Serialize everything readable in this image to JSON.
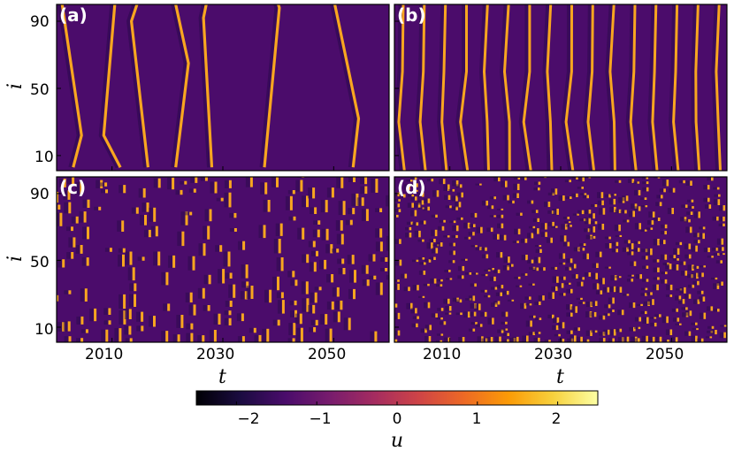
{
  "chart_data": [
    {
      "type": "heatmap",
      "panel_label": "(a)",
      "xlabel": "",
      "ylabel": "i",
      "xlim": [
        2000,
        2060
      ],
      "ylim": [
        1,
        100
      ],
      "xticks": [],
      "yticks": [
        "10",
        "50",
        "90"
      ],
      "background_u": -0.85,
      "wavefronts_t_at_i": [
        {
          "i": [
            3,
            22,
            100
          ],
          "t": [
            2003.0,
            2004.5,
            2001.0
          ]
        },
        {
          "i": [
            3,
            22,
            100
          ],
          "t": [
            2011.5,
            2008.5,
            2010.5
          ]
        },
        {
          "i": [
            3,
            90,
            100
          ],
          "t": [
            2016.5,
            2013.5,
            2014.5
          ]
        },
        {
          "i": [
            3,
            65,
            100
          ],
          "t": [
            2021.5,
            2023.8,
            2021.5
          ]
        },
        {
          "i": [
            3,
            92,
            100
          ],
          "t": [
            2028.0,
            2026.5,
            2027.0
          ]
        },
        {
          "i": [
            3,
            98,
            100
          ],
          "t": [
            2037.5,
            2040.2,
            2040.0
          ]
        },
        {
          "i": [
            3,
            32,
            100
          ],
          "t": [
            2053.5,
            2054.5,
            2050.2
          ]
        }
      ]
    },
    {
      "type": "heatmap",
      "panel_label": "(b)",
      "xlabel": "",
      "ylabel": "",
      "xlim": [
        2000,
        2060
      ],
      "ylim": [
        1,
        100
      ],
      "xticks": [],
      "yticks": [],
      "background_u": -0.85,
      "wavefront_spacing_t": 3.8,
      "wavefront_count": 17
    },
    {
      "type": "heatmap",
      "panel_label": "(c)",
      "xlabel": "t",
      "ylabel": "i",
      "xlim": [
        2000,
        2060
      ],
      "ylim": [
        1,
        100
      ],
      "xticks": [
        "2010",
        "2030",
        "2050"
      ],
      "yticks": [
        "10",
        "50",
        "90"
      ],
      "background_u": -0.85,
      "pattern": "fragmented wavefronts"
    },
    {
      "type": "heatmap",
      "panel_label": "(d)",
      "xlabel": "t",
      "ylabel": "",
      "xlim": [
        2000,
        2060
      ],
      "ylim": [
        1,
        100
      ],
      "xticks": [
        "2010",
        "2030",
        "2050"
      ],
      "yticks": [],
      "background_u": -0.85,
      "pattern": "spatiotemporal chaos"
    }
  ],
  "colorbar": {
    "label": "u",
    "range": [
      -2.5,
      2.5
    ],
    "ticks": [
      "−2",
      "−1",
      "0",
      "1",
      "2"
    ],
    "tick_values": [
      -2,
      -1,
      0,
      1,
      2
    ],
    "colormap": "inferno",
    "colors": [
      "#000004",
      "#1b0c41",
      "#4a0c6b",
      "#781c6d",
      "#a52c60",
      "#cf4446",
      "#ed6925",
      "#fb9b06",
      "#f7d13d",
      "#fcffa4"
    ]
  }
}
